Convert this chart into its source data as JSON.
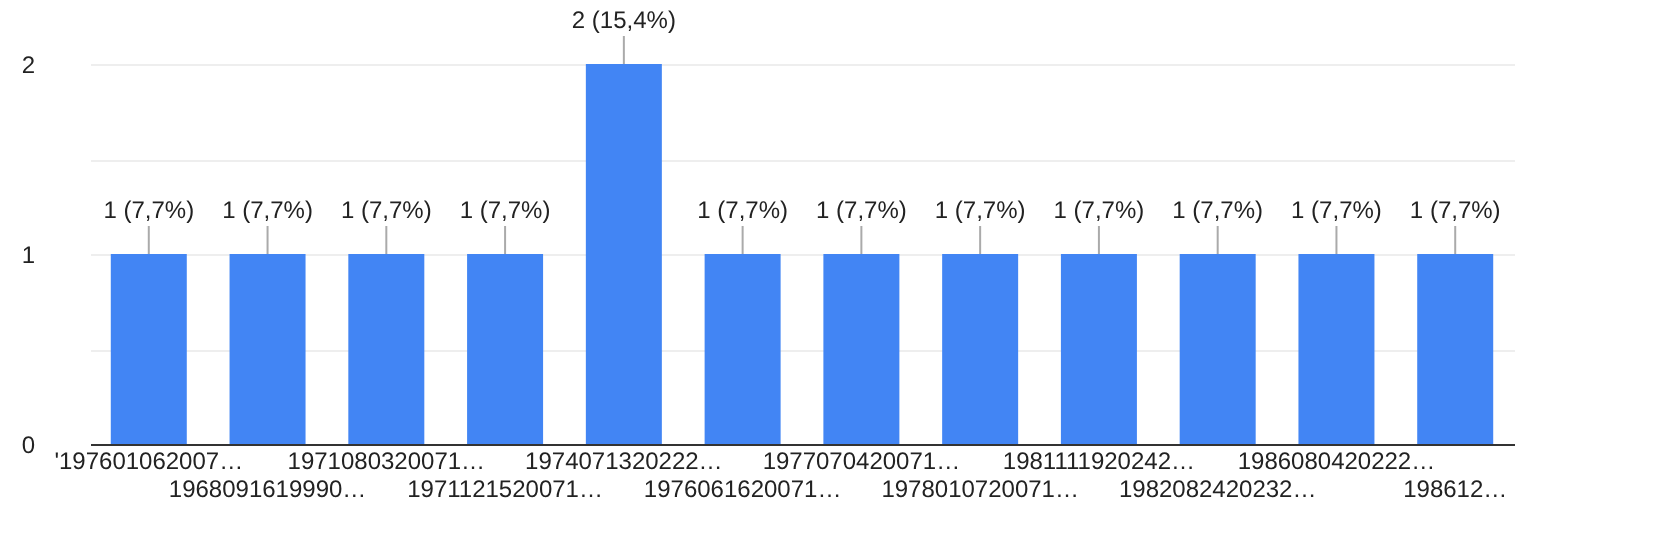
{
  "chart_data": {
    "type": "bar",
    "categories": [
      "'197601062007…",
      "1968091619990…",
      "1971080320071…",
      "1971121520071…",
      "1974071320222…",
      "1976061620071…",
      "1977070420071…",
      "1978010720071…",
      "1981111920242…",
      "1982082420232…",
      "1986080420222…",
      "198612…"
    ],
    "values": [
      1,
      1,
      1,
      1,
      2,
      1,
      1,
      1,
      1,
      1,
      1,
      1
    ],
    "value_labels": [
      "1 (7,7%)",
      "1 (7,7%)",
      "1 (7,7%)",
      "1 (7,7%)",
      "2 (15,4%)",
      "1 (7,7%)",
      "1 (7,7%)",
      "1 (7,7%)",
      "1 (7,7%)",
      "1 (7,7%)",
      "1 (7,7%)",
      "1 (7,7%)"
    ],
    "color": "#4285f4",
    "ylim": [
      0,
      2
    ],
    "yticks": [
      0,
      {
        "value": 0.5,
        "label": null
      },
      1,
      {
        "value": 1.5,
        "label": null
      },
      2
    ],
    "grid": "y"
  }
}
